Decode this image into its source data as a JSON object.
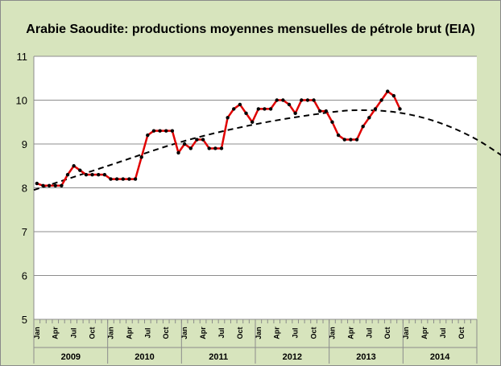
{
  "chart_data": {
    "type": "line",
    "title": "Arabie Saoudite: productions moyennes mensuelles de pétrole brut (EIA)",
    "ylim": [
      5,
      11
    ],
    "yticks": [
      5,
      6,
      7,
      8,
      9,
      10,
      11
    ],
    "grid": "horizontal",
    "month_labels": [
      "Jan",
      "Apr",
      "Jul",
      "Oct"
    ],
    "years": [
      "2009",
      "2010",
      "2011",
      "2012",
      "2013",
      "2014"
    ],
    "x_range_months": 72,
    "series": [
      {
        "color": "#e00000",
        "marker_color": "#000000",
        "values": [
          8.1,
          8.05,
          8.05,
          8.05,
          8.05,
          8.3,
          8.5,
          8.4,
          8.3,
          8.3,
          8.3,
          8.3,
          8.2,
          8.2,
          8.2,
          8.2,
          8.2,
          8.7,
          9.2,
          9.3,
          9.3,
          9.3,
          9.3,
          8.8,
          9.0,
          8.9,
          9.1,
          9.1,
          8.9,
          8.9,
          8.9,
          9.6,
          9.8,
          9.9,
          9.7,
          9.5,
          9.8,
          9.8,
          9.8,
          10.0,
          10.0,
          9.9,
          9.7,
          10.0,
          10.0,
          10.0,
          9.75,
          9.75,
          9.5,
          9.2,
          9.1,
          9.1,
          9.1,
          9.4,
          9.6,
          9.8,
          10.0,
          10.2,
          10.1,
          9.8
        ]
      }
    ],
    "trend": {
      "style": "dashed",
      "color": "#000000",
      "points": [
        [
          0,
          7.95
        ],
        [
          12,
          8.5
        ],
        [
          24,
          9.05
        ],
        [
          36,
          9.45
        ],
        [
          48,
          9.72
        ],
        [
          54,
          9.77
        ],
        [
          60,
          9.7
        ],
        [
          66,
          9.48
        ],
        [
          72,
          9.1
        ],
        [
          78,
          8.55
        ]
      ]
    }
  }
}
